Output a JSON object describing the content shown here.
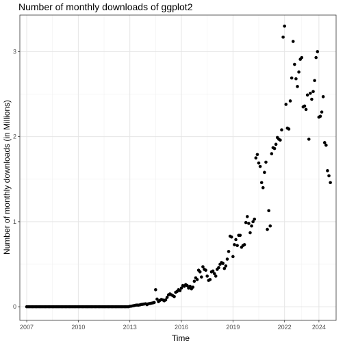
{
  "chart_data": {
    "type": "scatter",
    "title": "Number of monthly downloads of ggplot2",
    "xlabel": "Time",
    "ylabel": "Number of monthly downloads (in Millions)",
    "xlim": [
      2006.6,
      2025.0
    ],
    "ylim": [
      -0.16,
      3.43
    ],
    "x_ticks": [
      2007,
      2010,
      2013,
      2016,
      2019,
      2022,
      2024
    ],
    "y_ticks": [
      0,
      1,
      2,
      3
    ],
    "grid": true,
    "legend": "none",
    "point_color": "#000000",
    "x": [
      2007.0,
      2007.083,
      2007.167,
      2007.25,
      2007.333,
      2007.417,
      2007.5,
      2007.583,
      2007.667,
      2007.75,
      2007.833,
      2007.917,
      2008.0,
      2008.083,
      2008.167,
      2008.25,
      2008.333,
      2008.417,
      2008.5,
      2008.583,
      2008.667,
      2008.75,
      2008.833,
      2008.917,
      2009.0,
      2009.083,
      2009.167,
      2009.25,
      2009.333,
      2009.417,
      2009.5,
      2009.583,
      2009.667,
      2009.75,
      2009.833,
      2009.917,
      2010.0,
      2010.083,
      2010.167,
      2010.25,
      2010.333,
      2010.417,
      2010.5,
      2010.583,
      2010.667,
      2010.75,
      2010.833,
      2010.917,
      2011.0,
      2011.083,
      2011.167,
      2011.25,
      2011.333,
      2011.417,
      2011.5,
      2011.583,
      2011.667,
      2011.75,
      2011.833,
      2011.917,
      2012.0,
      2012.083,
      2012.167,
      2012.25,
      2012.333,
      2012.417,
      2012.5,
      2012.583,
      2012.667,
      2012.75,
      2012.833,
      2012.917,
      2013.0,
      2013.083,
      2013.167,
      2013.25,
      2013.333,
      2013.417,
      2013.5,
      2013.583,
      2013.667,
      2013.75,
      2013.833,
      2013.917,
      2014.0,
      2014.083,
      2014.167,
      2014.25,
      2014.333,
      2014.417,
      2014.5,
      2014.583,
      2014.667,
      2014.75,
      2014.833,
      2014.917,
      2015.0,
      2015.083,
      2015.167,
      2015.25,
      2015.333,
      2015.417,
      2015.5,
      2015.583,
      2015.667,
      2015.75,
      2015.833,
      2015.917,
      2016.0,
      2016.083,
      2016.167,
      2016.25,
      2016.333,
      2016.417,
      2016.5,
      2016.583,
      2016.667,
      2016.75,
      2016.833,
      2016.917,
      2017.0,
      2017.083,
      2017.167,
      2017.25,
      2017.333,
      2017.417,
      2017.5,
      2017.583,
      2017.667,
      2017.75,
      2017.833,
      2017.917,
      2018.0,
      2018.083,
      2018.167,
      2018.25,
      2018.333,
      2018.417,
      2018.5,
      2018.583,
      2018.667,
      2018.75,
      2018.833,
      2018.917,
      2019.0,
      2019.083,
      2019.167,
      2019.25,
      2019.333,
      2019.417,
      2019.5,
      2019.583,
      2019.667,
      2019.75,
      2019.833,
      2019.917,
      2020.0,
      2020.083,
      2020.167,
      2020.25,
      2020.333,
      2020.417,
      2020.5,
      2020.583,
      2020.667,
      2020.75,
      2020.833,
      2020.917,
      2021.0,
      2021.083,
      2021.167,
      2021.25,
      2021.333,
      2021.417,
      2021.5,
      2021.583,
      2021.667,
      2021.75,
      2021.833,
      2021.917,
      2022.0,
      2022.083,
      2022.167,
      2022.25,
      2022.333,
      2022.417,
      2022.5,
      2022.583,
      2022.667,
      2022.75,
      2022.833,
      2022.917,
      2023.0,
      2023.083,
      2023.167,
      2023.25,
      2023.333,
      2023.417,
      2023.5,
      2023.583,
      2023.667,
      2023.75,
      2023.833,
      2023.917,
      2024.0,
      2024.083,
      2024.167,
      2024.25,
      2024.333,
      2024.417,
      2024.5,
      2024.583,
      2024.667
    ],
    "y": [
      0,
      0,
      0,
      0,
      0,
      0,
      0,
      0,
      0,
      0,
      0,
      0,
      0,
      0,
      0,
      0,
      0,
      0,
      0,
      0,
      0,
      0,
      0,
      0,
      0,
      0,
      0,
      0,
      0,
      0,
      0,
      0,
      0,
      0,
      0,
      0,
      0,
      0,
      0,
      0,
      0,
      0,
      0,
      0,
      0,
      0,
      0,
      0,
      0,
      0,
      0,
      0,
      0,
      0,
      0,
      0,
      0,
      0,
      0,
      0,
      0,
      0,
      0,
      0,
      0,
      0,
      0,
      0,
      0,
      0,
      0,
      0,
      0.005,
      0.007,
      0.01,
      0.014,
      0.018,
      0.02,
      0.019,
      0.022,
      0.027,
      0.029,
      0.032,
      0.035,
      0.025,
      0.035,
      0.038,
      0.042,
      0.045,
      0.05,
      0.2,
      0.09,
      0.06,
      0.075,
      0.085,
      0.08,
      0.07,
      0.08,
      0.11,
      0.14,
      0.15,
      0.14,
      0.13,
      0.12,
      0.17,
      0.18,
      0.2,
      0.19,
      0.22,
      0.25,
      0.24,
      0.26,
      0.25,
      0.22,
      0.24,
      0.21,
      0.23,
      0.3,
      0.34,
      0.32,
      0.43,
      0.41,
      0.35,
      0.47,
      0.44,
      0.43,
      0.36,
      0.31,
      0.32,
      0.41,
      0.42,
      0.39,
      0.36,
      0.44,
      0.46,
      0.5,
      0.52,
      0.51,
      0.45,
      0.48,
      0.56,
      0.65,
      0.83,
      0.82,
      0.59,
      0.73,
      0.79,
      0.72,
      0.84,
      0.84,
      0.7,
      0.72,
      0.73,
      0.99,
      1.06,
      0.98,
      0.87,
      0.95,
      1.0,
      1.03,
      1.75,
      1.79,
      1.69,
      1.65,
      1.46,
      1.4,
      1.58,
      1.7,
      0.91,
      1.13,
      0.95,
      1.8,
      1.87,
      1.86,
      1.91,
      1.99,
      1.97,
      1.96,
      2.08,
      3.17,
      3.3,
      2.38,
      2.1,
      2.09,
      2.42,
      2.69,
      3.12,
      2.85,
      2.68,
      2.59,
      2.76,
      2.91,
      2.93,
      2.35,
      2.36,
      2.32,
      2.49,
      1.97,
      2.51,
      2.44,
      2.53,
      2.66,
      2.93,
      3.0,
      2.23,
      2.24,
      2.29,
      2.47,
      1.93,
      1.9,
      1.6,
      1.54,
      1.46
    ]
  }
}
